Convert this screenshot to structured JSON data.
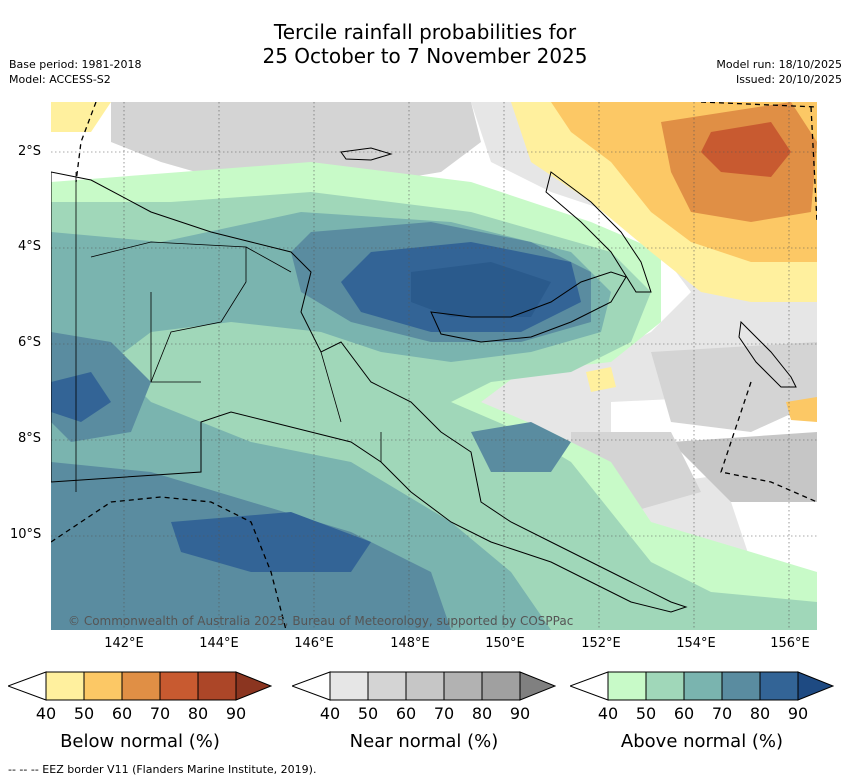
{
  "title": {
    "line1": "Tercile rainfall probabilities for",
    "line2": "25 October to 7 November 2025"
  },
  "meta_left": {
    "base_period": "Base period: 1981-2018",
    "model": "Model: ACCESS-S2"
  },
  "meta_right": {
    "model_run": "Model run: 18/10/2025",
    "issued": "Issued: 20/10/2025"
  },
  "map": {
    "lat_ticks": [
      "2°S",
      "4°S",
      "6°S",
      "8°S",
      "10°S"
    ],
    "lon_ticks": [
      "142°E",
      "144°E",
      "146°E",
      "148°E",
      "150°E",
      "152°E",
      "154°E",
      "156°E"
    ],
    "copyright": "© Commonwealth of Australia 2025, Bureau of Meteorology, supported by COSPPac"
  },
  "colorbars": [
    {
      "label": "Below normal (%)",
      "ticks": [
        "40",
        "50",
        "60",
        "70",
        "80",
        "90"
      ],
      "colors": [
        "#ffffff",
        "#fff09e",
        "#fcc865",
        "#e08f45",
        "#c85a30",
        "#ac4628",
        "#8b3520"
      ]
    },
    {
      "label": "Near normal (%)",
      "ticks": [
        "40",
        "50",
        "60",
        "70",
        "80",
        "90"
      ],
      "colors": [
        "#ffffff",
        "#e6e6e6",
        "#d4d4d4",
        "#c6c6c6",
        "#b2b2b2",
        "#a0a0a0",
        "#808080"
      ]
    },
    {
      "label": "Above normal (%)",
      "ticks": [
        "40",
        "50",
        "60",
        "70",
        "80",
        "90"
      ],
      "colors": [
        "#ffffff",
        "#c8fac8",
        "#a0d7b9",
        "#7ab4af",
        "#5a8ca0",
        "#336496",
        "#1e4a82"
      ]
    }
  ],
  "footnote": "--  --  -- EEZ border V11 (Flanders Marine Institute, 2019)."
}
